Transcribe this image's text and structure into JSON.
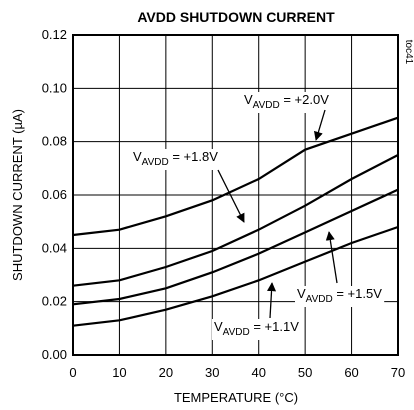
{
  "chart_data": {
    "type": "line",
    "title": "AVDD SHUTDOWN CURRENT",
    "xlabel": "TEMPERATURE (°C)",
    "ylabel": "SHUTDOWN CURRENT (µA)",
    "side_note": "toc41",
    "x": [
      0,
      10,
      20,
      30,
      40,
      50,
      60,
      70
    ],
    "series": [
      {
        "label": {
          "v": "V",
          "sub": "AVDD",
          "rest": " = +2.0V"
        },
        "color": "#000000",
        "values": [
          0.045,
          0.047,
          0.052,
          0.058,
          0.066,
          0.077,
          0.083,
          0.089
        ]
      },
      {
        "label": {
          "v": "V",
          "sub": "AVDD",
          "rest": " = +1.8V"
        },
        "color": "#000000",
        "values": [
          0.026,
          0.028,
          0.033,
          0.039,
          0.047,
          0.056,
          0.066,
          0.075
        ]
      },
      {
        "label": {
          "v": "V",
          "sub": "AVDD",
          "rest": " = +1.5V"
        },
        "color": "#000000",
        "values": [
          0.019,
          0.021,
          0.025,
          0.031,
          0.038,
          0.046,
          0.054,
          0.062
        ]
      },
      {
        "label": {
          "v": "V",
          "sub": "AVDD",
          "rest": " = +1.1V"
        },
        "color": "#000000",
        "values": [
          0.011,
          0.013,
          0.017,
          0.022,
          0.028,
          0.035,
          0.042,
          0.048
        ]
      }
    ],
    "xlim": [
      0,
      70
    ],
    "xticks": [
      0,
      10,
      20,
      30,
      40,
      50,
      60,
      70
    ],
    "ylim": [
      0,
      0.12
    ],
    "yticks": [
      {
        "value": 0,
        "label": "0.00"
      },
      {
        "value": 0.02,
        "label": "0.02"
      },
      {
        "value": 0.04,
        "label": "0.04"
      },
      {
        "value": 0.06,
        "label": "0.06"
      },
      {
        "value": 0.08,
        "label": "0.08"
      },
      {
        "value": 0.1,
        "label": "0.10"
      },
      {
        "value": 0.12,
        "label": "0.12"
      }
    ],
    "grid": true
  }
}
